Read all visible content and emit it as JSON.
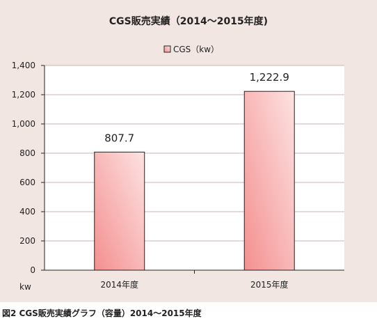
{
  "caption": "図2 CGS販売実績グラフ（容量）2014～2015年度",
  "chart_data": {
    "type": "bar",
    "title": "CGS販売実績（2014～2015年度)",
    "categories": [
      "2014年度",
      "2015年度"
    ],
    "series": [
      {
        "name": "CGS（kw）",
        "values": [
          807.7,
          1222.9
        ]
      }
    ],
    "data_labels": [
      "807.7",
      "1,222.9"
    ],
    "ylabel": "kw",
    "ylim": [
      0,
      1400
    ],
    "yticks": [
      0,
      200,
      400,
      600,
      800,
      1000,
      1200,
      1400
    ],
    "ytick_labels": [
      "0",
      "200",
      "400",
      "600",
      "800",
      "1,000",
      "1,200",
      "1,400"
    ],
    "grid": true,
    "legend_position": "top",
    "colors": {
      "panel_background": "#f2e6e3",
      "plot_background": "#ffffff",
      "gridline": "#ccb3b3",
      "bar_fill_dark": "#f48f8f",
      "bar_fill_light": "#fde2e2",
      "bar_stroke": "#222222"
    }
  }
}
